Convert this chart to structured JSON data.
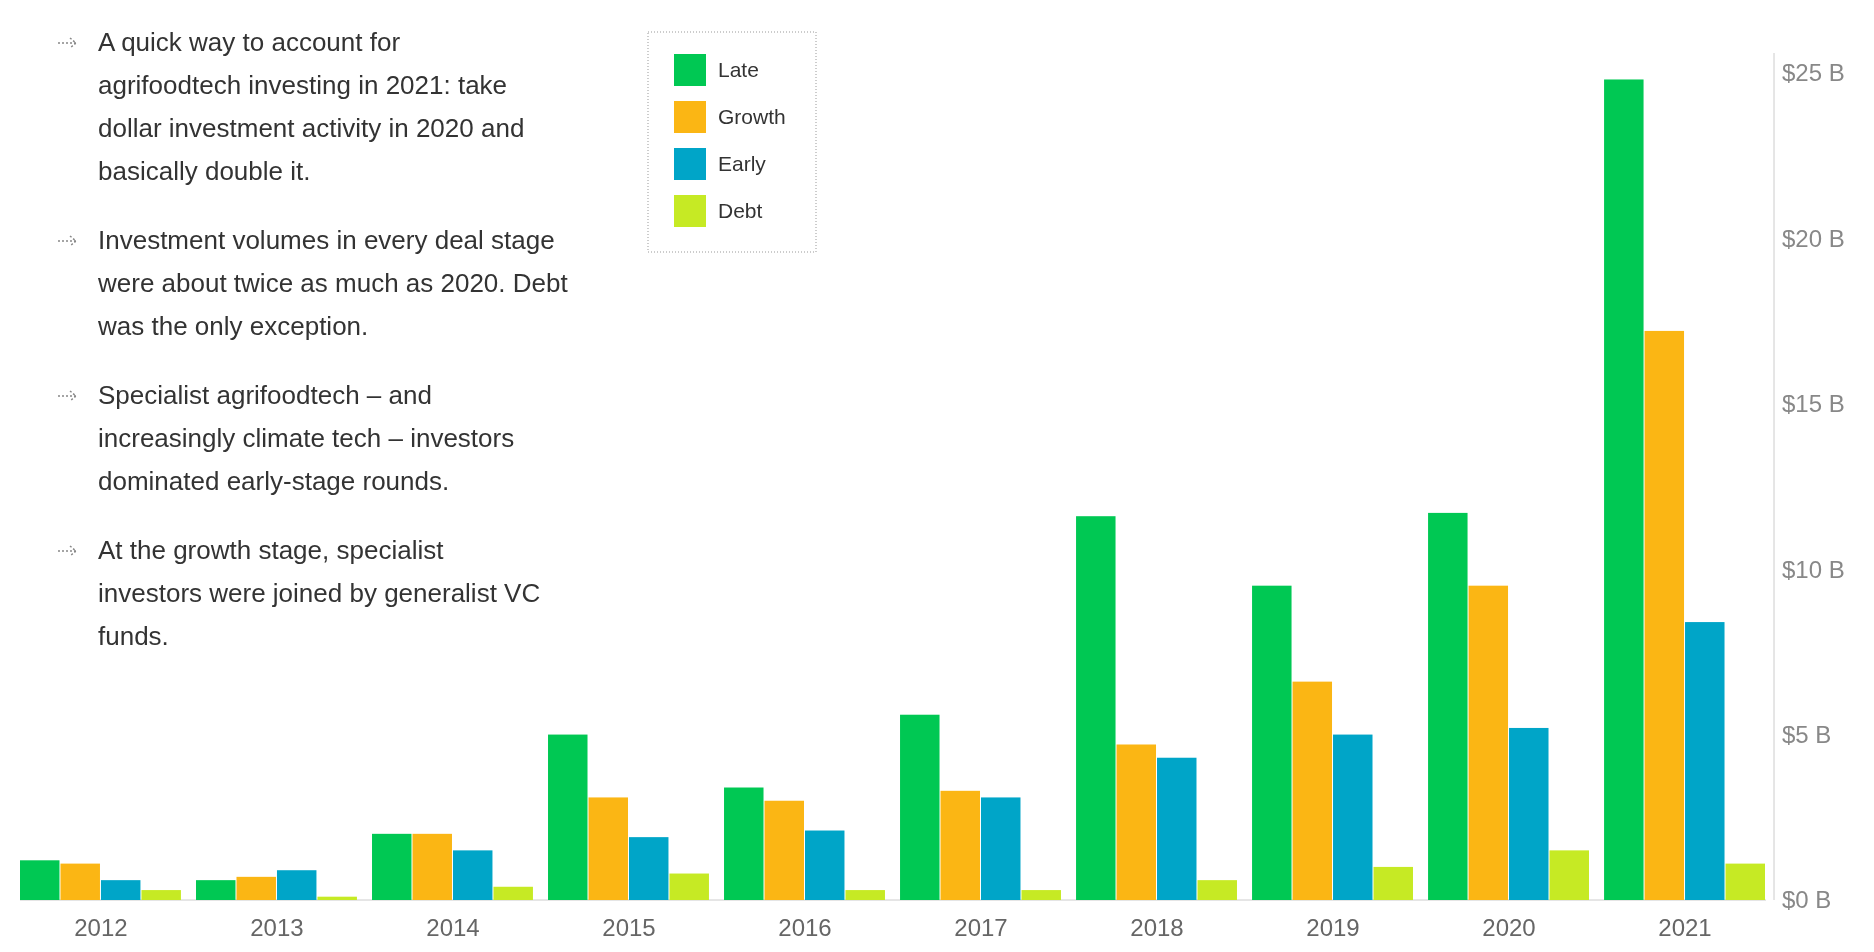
{
  "chart_data": {
    "type": "bar",
    "categories": [
      "2012",
      "2013",
      "2014",
      "2015",
      "2016",
      "2017",
      "2018",
      "2019",
      "2020",
      "2021"
    ],
    "series": [
      {
        "name": "Late",
        "color": "#00c853",
        "values": [
          1.2,
          0.6,
          2.0,
          5.0,
          3.4,
          5.6,
          11.6,
          9.5,
          11.7,
          24.8
        ]
      },
      {
        "name": "Growth",
        "color": "#fbb614",
        "values": [
          1.1,
          0.7,
          2.0,
          3.1,
          3.0,
          3.3,
          4.7,
          6.6,
          9.5,
          17.2
        ]
      },
      {
        "name": "Early",
        "color": "#00a5c8",
        "values": [
          0.6,
          0.9,
          1.5,
          1.9,
          2.1,
          3.1,
          4.3,
          5.0,
          5.2,
          8.4
        ]
      },
      {
        "name": "Debt",
        "color": "#c6ea24",
        "values": [
          0.3,
          0.1,
          0.4,
          0.8,
          0.3,
          0.3,
          0.6,
          1.0,
          1.5,
          1.1
        ]
      }
    ],
    "ylim": [
      0,
      25.6
    ],
    "yticks": [
      {
        "value": 0,
        "label": "$0 B"
      },
      {
        "value": 5,
        "label": "$5 B"
      },
      {
        "value": 10,
        "label": "$10 B"
      },
      {
        "value": 15,
        "label": "$15 B"
      },
      {
        "value": 20,
        "label": "$20 B"
      },
      {
        "value": 25,
        "label": "$25 B"
      }
    ],
    "grid": false,
    "legend": "top",
    "annotations": [
      "A quick way to account for agrifoodtech investing in 2021: take dollar investment activity in 2020 and basically double it.",
      "Investment volumes in every deal stage were about twice as much as 2020. Debt was the only exception.",
      "Specialist agrifoodtech – and increasingly climate tech – investors dominated early-stage rounds.",
      "At the growth stage, specialist investors were joined by generalist VC funds."
    ]
  }
}
